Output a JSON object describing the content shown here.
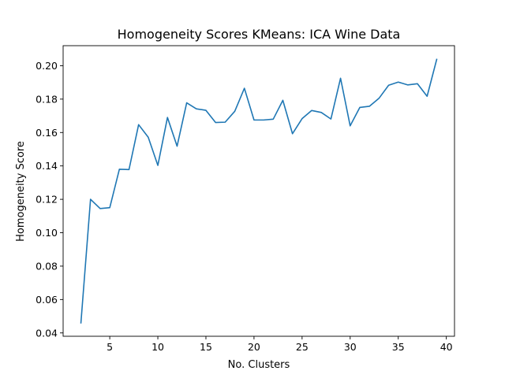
{
  "chart_data": {
    "type": "line",
    "title": "Homogeneity Scores KMeans: ICA Wine Data",
    "xlabel": "No. Clusters",
    "ylabel": "Homogeneity Score",
    "xlim": [
      0.15,
      40.85
    ],
    "ylim": [
      0.038,
      0.212
    ],
    "xticks": [
      5,
      10,
      15,
      20,
      25,
      30,
      35,
      40
    ],
    "xtick_labels": [
      "5",
      "10",
      "15",
      "20",
      "25",
      "30",
      "35",
      "40"
    ],
    "yticks": [
      0.04,
      0.06,
      0.08,
      0.1,
      0.12,
      0.14,
      0.16,
      0.18,
      0.2
    ],
    "ytick_labels": [
      "0.04",
      "0.06",
      "0.08",
      "0.10",
      "0.12",
      "0.14",
      "0.16",
      "0.18",
      "0.20"
    ],
    "grid": false,
    "series": [
      {
        "color": "#1f77b4",
        "x": [
          2,
          3,
          4,
          5,
          6,
          7,
          8,
          9,
          10,
          11,
          12,
          13,
          14,
          15,
          16,
          17,
          18,
          19,
          20,
          21,
          22,
          23,
          24,
          25,
          26,
          27,
          28,
          29,
          30,
          31,
          32,
          33,
          34,
          35,
          36,
          37,
          38,
          39
        ],
        "y": [
          0.046,
          0.12,
          0.1145,
          0.115,
          0.138,
          0.1378,
          0.1647,
          0.1572,
          0.1403,
          0.169,
          0.1518,
          0.1778,
          0.1742,
          0.1733,
          0.166,
          0.1662,
          0.1727,
          0.1865,
          0.1675,
          0.1675,
          0.168,
          0.1793,
          0.1593,
          0.1683,
          0.1732,
          0.172,
          0.1681,
          0.1925,
          0.164,
          0.175,
          0.1757,
          0.1805,
          0.1883,
          0.1902,
          0.1885,
          0.1892,
          0.1817,
          0.2038
        ]
      }
    ]
  }
}
